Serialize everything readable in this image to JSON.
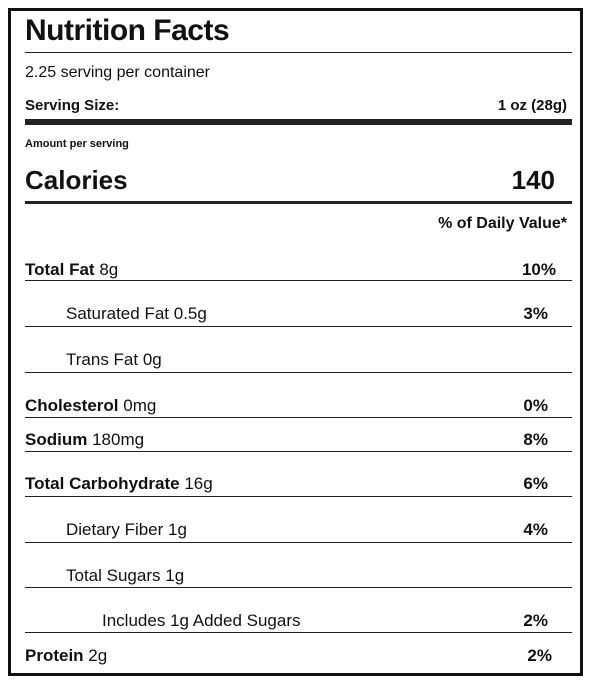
{
  "title": "Nutrition Facts",
  "servings_per_container": "2.25 serving per container",
  "serving_size": {
    "label": "Serving Size:",
    "value": "1 oz (28g)"
  },
  "amount_per_serving": "Amount per serving",
  "calories": {
    "label": "Calories",
    "value": "140"
  },
  "daily_value_header": "% of Daily Value*",
  "nutrients": [
    {
      "name": "Total Fat",
      "amount": "8g",
      "dv": "10%"
    },
    {
      "name": "Saturated Fat",
      "amount": "0.5g",
      "dv": "3%"
    },
    {
      "name": "Trans Fat",
      "amount": "0g",
      "dv": ""
    },
    {
      "name": "Cholesterol",
      "amount": "0mg",
      "dv": "0%"
    },
    {
      "name": "Sodium",
      "amount": "180mg",
      "dv": "8%"
    },
    {
      "name": "Total Carbohydrate",
      "amount": "16g",
      "dv": "6%"
    },
    {
      "name": "Dietary Fiber",
      "amount": "1g",
      "dv": "4%"
    },
    {
      "name": "Total Sugars",
      "amount": "1g",
      "dv": ""
    },
    {
      "name": "Includes 1g Added Sugars",
      "amount": "",
      "dv": "2%"
    },
    {
      "name": "Protein",
      "amount": "2g",
      "dv": "2%"
    }
  ]
}
